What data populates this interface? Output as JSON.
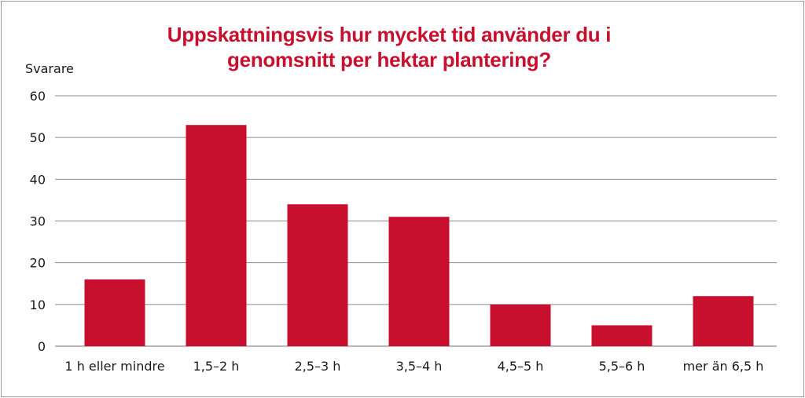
{
  "chart_data": {
    "type": "bar",
    "title": "Uppskattningsvis hur mycket tid använder du i genomsnitt per hektar plantering?",
    "ylabel": "Svarare",
    "xlabel": "",
    "categories": [
      "1 h eller mindre",
      "1,5–2 h",
      "2,5–3 h",
      "3,5–4 h",
      "4,5–5 h",
      "5,5–6 h",
      "mer än 6,5 h"
    ],
    "values": [
      16,
      53,
      34,
      31,
      10,
      5,
      12
    ],
    "ylim": [
      0,
      60
    ],
    "yticks": [
      "0",
      "10",
      "20",
      "30",
      "40",
      "50",
      "60"
    ],
    "grid": true,
    "bar_color": "#c8102e",
    "title_color": "#c8102e"
  }
}
